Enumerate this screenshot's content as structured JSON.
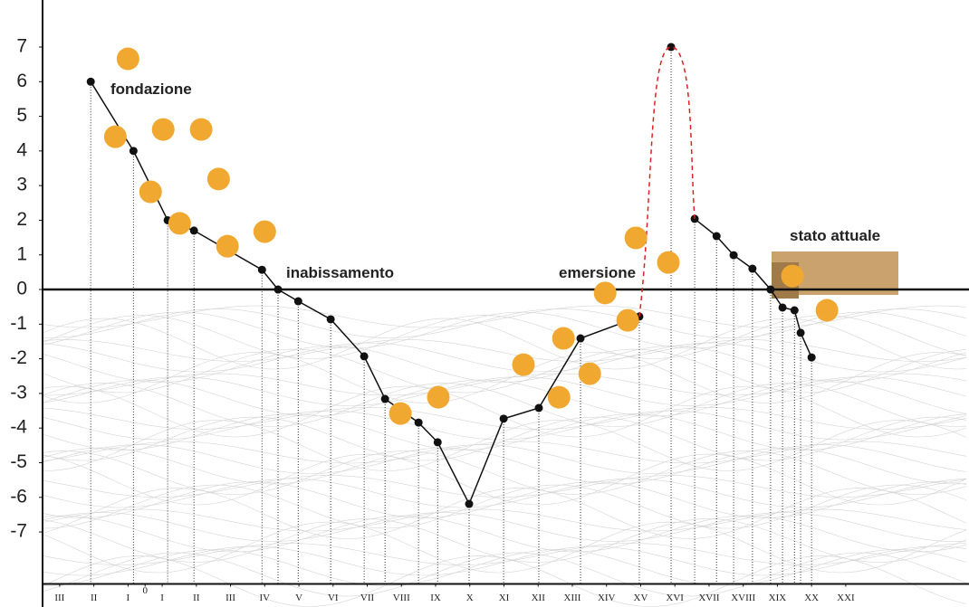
{
  "chart_data": {
    "type": "line",
    "xlim": [
      -3,
      24
    ],
    "ylim": [
      -8.5,
      8
    ],
    "yticks": [
      -7,
      -6,
      -5,
      -4,
      -3,
      -2,
      -1,
      0,
      1,
      2,
      3,
      4,
      5,
      6,
      7
    ],
    "xticks": [
      {
        "value": -2.5,
        "label": "III"
      },
      {
        "value": -1.5,
        "label": "II"
      },
      {
        "value": -0.5,
        "label": "I"
      },
      0,
      {
        "value": 0.5,
        "label": "I"
      },
      {
        "value": 1.5,
        "label": "II"
      },
      {
        "value": 2.5,
        "label": "III"
      },
      {
        "value": 3.5,
        "label": "IV"
      },
      {
        "value": 4.5,
        "label": "V"
      },
      {
        "value": 5.5,
        "label": "VI"
      },
      {
        "value": 6.5,
        "label": "VII"
      },
      {
        "value": 7.5,
        "label": "VIII"
      },
      {
        "value": 8.5,
        "label": "IX"
      },
      {
        "value": 9.5,
        "label": "X"
      },
      {
        "value": 10.5,
        "label": "XI"
      },
      {
        "value": 11.5,
        "label": "XII"
      },
      {
        "value": 12.5,
        "label": "XIII"
      },
      {
        "value": 13.5,
        "label": "XIV"
      },
      {
        "value": 14.5,
        "label": "XV"
      },
      {
        "value": 15.5,
        "label": "XVI"
      },
      {
        "value": 16.5,
        "label": "XVII"
      },
      {
        "value": 17.5,
        "label": "XVIII"
      },
      {
        "value": 18.5,
        "label": "XIX"
      },
      {
        "value": 19.5,
        "label": "XX"
      },
      {
        "value": 20.5,
        "label": "XXI"
      }
    ],
    "annotations": [
      "fondazione",
      "inabissamento",
      "emersione",
      "stato attuale"
    ],
    "series": [
      {
        "color": "#111111",
        "style": "solid",
        "x": [
          -1.59,
          -0.34,
          0.66,
          1.43,
          3.42,
          3.89,
          4.48,
          5.43,
          6.41,
          7.02,
          8.0,
          8.56,
          9.48,
          10.49,
          11.52,
          12.74,
          14.46,
          null,
          15.39,
          null,
          16.08,
          16.72,
          17.22,
          17.77,
          18.3,
          18.65,
          19.0,
          19.18,
          19.5
        ],
        "values": [
          6,
          4,
          2,
          1.7,
          0.57,
          0,
          -0.34,
          -0.86,
          -1.93,
          -3.16,
          -3.84,
          -4.41,
          -6.19,
          -3.73,
          -3.42,
          -1.41,
          -0.78,
          null,
          7,
          null,
          2.04,
          1.54,
          0.99,
          0.6,
          0,
          -0.52,
          -0.6,
          -1.25,
          -1.96
        ]
      },
      {
        "color": "#e02020",
        "style": "dashed",
        "x": [
          14.46,
          15.39,
          16.08
        ],
        "values": [
          -0.78,
          7,
          2.04
        ]
      }
    ],
    "events": {
      "color": "#f0a830",
      "x": [
        -0.5,
        -0.87,
        0.53,
        1.64,
        0.16,
        2.15,
        1.01,
        2.41,
        3.5,
        7.47,
        8.58,
        11.07,
        12.11,
        12.24,
        13.01,
        13.46,
        14.12,
        14.36,
        15.31,
        18.94,
        19.95
      ],
      "values": [
        6.66,
        4.41,
        4.62,
        4.62,
        2.82,
        3.19,
        1.91,
        1.25,
        1.67,
        -3.58,
        -3.11,
        -2.17,
        -3.11,
        -1.41,
        -2.43,
        -0.1,
        -0.89,
        1.49,
        0.78,
        0.39,
        -0.6
      ]
    }
  }
}
